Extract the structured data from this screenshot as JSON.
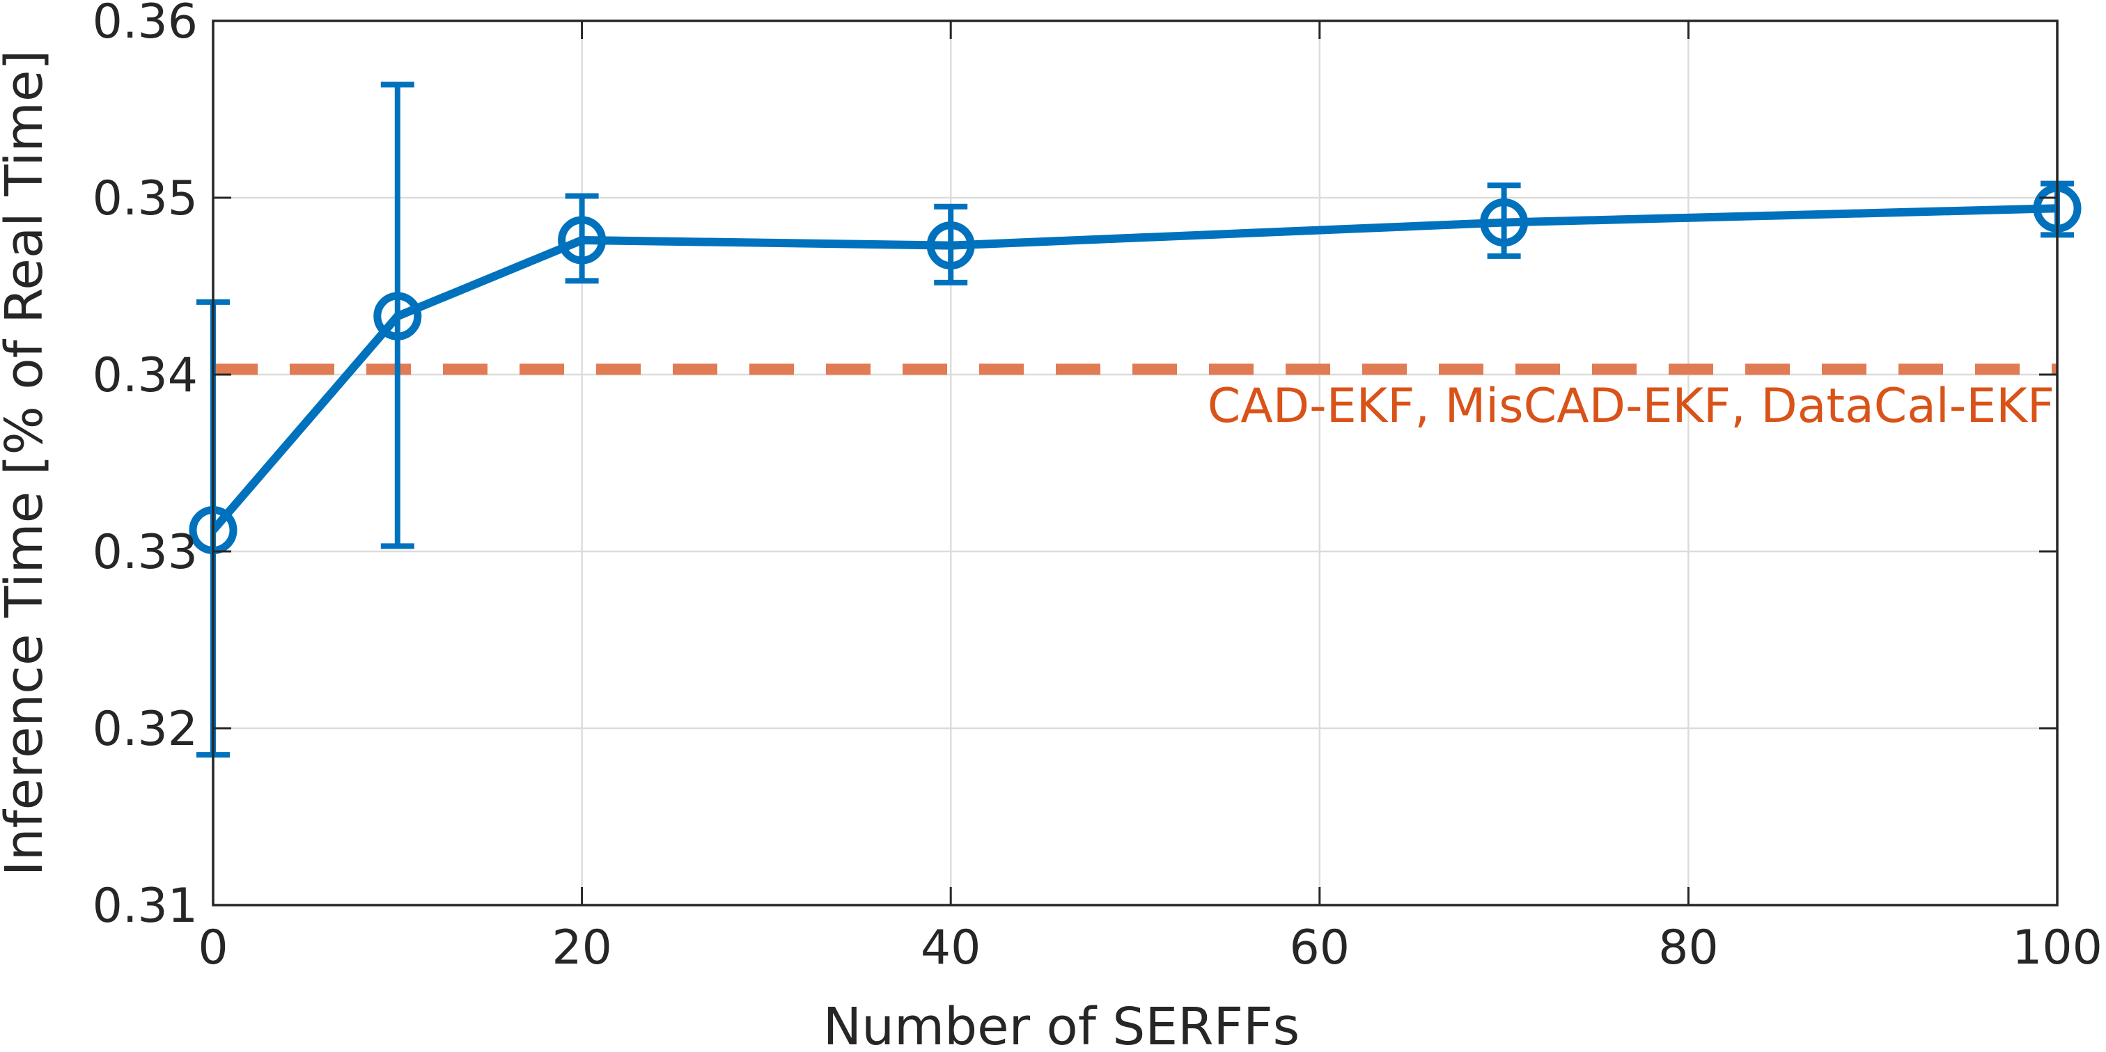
{
  "chart_data": {
    "type": "line",
    "xlabel": "Number of SERFFs",
    "ylabel": "Inference Time [% of Real Time]",
    "xlim": [
      0,
      100
    ],
    "ylim": [
      0.31,
      0.36
    ],
    "xticks": [
      "0",
      "20",
      "40",
      "60",
      "80",
      "100"
    ],
    "yticks": [
      "0.31",
      "0.32",
      "0.33",
      "0.34",
      "0.35",
      "0.36"
    ],
    "grid": true,
    "series": [
      {
        "name": "",
        "color": "#0072bd",
        "marker": "circle",
        "x": [
          0,
          10,
          20,
          40,
          70,
          100
        ],
        "y": [
          0.3312,
          0.3433,
          0.3476,
          0.3473,
          0.3486,
          0.3494
        ],
        "err_low": [
          0.3185,
          0.3303,
          0.3453,
          0.3452,
          0.3467,
          0.3479
        ],
        "err_high": [
          0.3441,
          0.3564,
          0.3501,
          0.3495,
          0.3507,
          0.3508
        ]
      }
    ],
    "reference_line": {
      "y": 0.3403,
      "color": "#e07b54",
      "style": "dashed",
      "label": "CAD-EKF, MisCAD-EKF, DataCal-EKF",
      "label_color": "#d95319"
    }
  }
}
